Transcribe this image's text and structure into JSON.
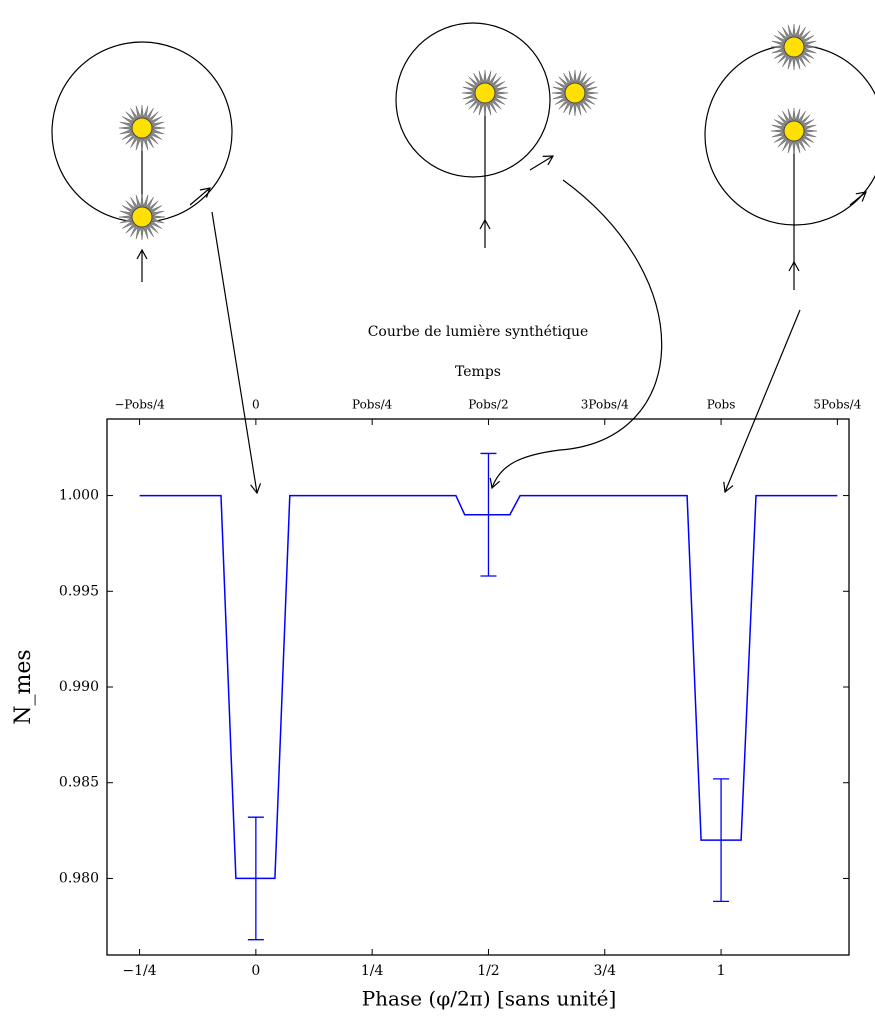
{
  "chart_data": {
    "type": "line",
    "title": "Courbe de lumière synthétique",
    "x_label": "Phase (φ/2π) [sans unité]",
    "y_label": "N_mes",
    "top_axis": {
      "label": "Temps",
      "ticks": [
        {
          "value": -0.25,
          "label": "−Pobs/4"
        },
        0,
        {
          "value": 0.25,
          "label": "Pobs/4"
        },
        {
          "value": 0.5,
          "label": "Pobs/2"
        },
        {
          "value": 0.75,
          "label": "3Pobs/4"
        },
        {
          "value": 1,
          "label": "Pobs"
        },
        {
          "value": 1.25,
          "label": "5Pobs/4"
        }
      ]
    },
    "x": [
      -0.25,
      -0.075,
      -0.043,
      0.041,
      0.073,
      0.43,
      0.449,
      0.546,
      0.568,
      0.927,
      0.957,
      1.043,
      1.075,
      1.25
    ],
    "values": [
      1.0,
      1.0,
      0.98,
      0.98,
      1.0,
      1.0,
      0.999,
      0.999,
      1.0,
      1.0,
      0.982,
      0.982,
      1.0,
      1.0
    ],
    "color": "#0000ff",
    "errorbars": {
      "x": [
        0,
        0.5,
        1
      ],
      "values": [
        0.98,
        0.999,
        0.982
      ],
      "errors": [
        0.0032,
        0.0032,
        0.0032
      ]
    },
    "xlim": [
      -0.32,
      1.275
    ],
    "ylim": [
      0.976,
      1.004
    ],
    "xticks": [
      {
        "value": -0.25,
        "label": "−1/4"
      },
      0,
      {
        "value": 0.25,
        "label": "1/4"
      },
      {
        "value": 0.5,
        "label": "1/2"
      },
      {
        "value": 0.75,
        "label": "3/4"
      },
      1
    ],
    "yticks": [
      {
        "value": 0.98,
        "label": "0.980"
      },
      0.985,
      {
        "value": 0.99,
        "label": "0.990"
      },
      0.995,
      {
        "value": 1.0,
        "label": "1.000"
      }
    ]
  }
}
